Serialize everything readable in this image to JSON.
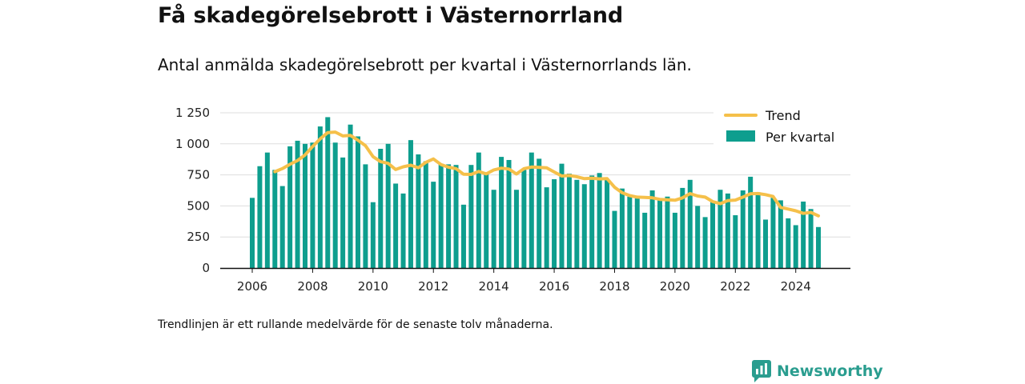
{
  "header": {
    "title": "Få skadegörelsebrott i Västernorrland",
    "subtitle": "Antal anmälda skadegörelsebrott per kvartal i Västernorrlands län."
  },
  "footnote": "Trendlinjen är ett rullande medelvärde för de senaste tolv månaderna.",
  "brand": {
    "name": "Newsworthy",
    "icon": "newsworthy-logo-icon"
  },
  "colors": {
    "bars": "#0e9e8e",
    "trend": "#f5c04a",
    "grid": "#dddddd",
    "axis": "#111111"
  },
  "legend": {
    "trend_label": "Trend",
    "bars_label": "Per kvartal"
  },
  "chart_data": {
    "type": "bar",
    "title": "",
    "xlabel": "",
    "ylabel": "",
    "x_ticks": [
      "2006",
      "2008",
      "2010",
      "2012",
      "2014",
      "2016",
      "2018",
      "2020",
      "2022",
      "2024"
    ],
    "y_ticks": [
      "0",
      "250",
      "500",
      "750",
      "1 000",
      "1 250"
    ],
    "xlim": [
      2006.0,
      2024.75
    ],
    "ylim": [
      0,
      1250
    ],
    "grid": true,
    "legend_position": "top-right",
    "quarters": [
      "2006 Q1",
      "2006 Q2",
      "2006 Q3",
      "2006 Q4",
      "2007 Q1",
      "2007 Q2",
      "2007 Q3",
      "2007 Q4",
      "2008 Q1",
      "2008 Q2",
      "2008 Q3",
      "2008 Q4",
      "2009 Q1",
      "2009 Q2",
      "2009 Q3",
      "2009 Q4",
      "2010 Q1",
      "2010 Q2",
      "2010 Q3",
      "2010 Q4",
      "2011 Q1",
      "2011 Q2",
      "2011 Q3",
      "2011 Q4",
      "2012 Q1",
      "2012 Q2",
      "2012 Q3",
      "2012 Q4",
      "2013 Q1",
      "2013 Q2",
      "2013 Q3",
      "2013 Q4",
      "2014 Q1",
      "2014 Q2",
      "2014 Q3",
      "2014 Q4",
      "2015 Q1",
      "2015 Q2",
      "2015 Q3",
      "2015 Q4",
      "2016 Q1",
      "2016 Q2",
      "2016 Q3",
      "2016 Q4",
      "2017 Q1",
      "2017 Q2",
      "2017 Q3",
      "2017 Q4",
      "2018 Q1",
      "2018 Q2",
      "2018 Q3",
      "2018 Q4",
      "2019 Q1",
      "2019 Q2",
      "2019 Q3",
      "2019 Q4",
      "2020 Q1",
      "2020 Q2",
      "2020 Q3",
      "2020 Q4",
      "2021 Q1",
      "2021 Q2",
      "2021 Q3",
      "2021 Q4",
      "2022 Q1",
      "2022 Q2",
      "2022 Q3",
      "2022 Q4",
      "2023 Q1",
      "2023 Q2",
      "2023 Q3",
      "2023 Q4",
      "2024 Q1",
      "2024 Q2",
      "2024 Q3",
      "2024 Q4"
    ],
    "series": [
      {
        "name": "Per kvartal",
        "type": "bar",
        "values": [
          565,
          820,
          930,
          790,
          660,
          980,
          1025,
          1000,
          1010,
          1140,
          1215,
          1010,
          890,
          1155,
          1060,
          835,
          530,
          960,
          1000,
          680,
          600,
          1030,
          915,
          860,
          695,
          840,
          835,
          830,
          510,
          830,
          930,
          760,
          630,
          895,
          870,
          630,
          790,
          930,
          880,
          650,
          715,
          840,
          760,
          710,
          675,
          745,
          765,
          715,
          460,
          640,
          575,
          560,
          445,
          625,
          545,
          575,
          445,
          645,
          710,
          500,
          410,
          530,
          630,
          600,
          425,
          625,
          735,
          610,
          390,
          565,
          545,
          400,
          345,
          535,
          475,
          330
        ]
      },
      {
        "name": "Trend",
        "type": "line",
        "values": [
          null,
          null,
          null,
          776,
          801,
          835,
          866,
          911,
          979,
          1040,
          1091,
          1095,
          1064,
          1068,
          1029,
          985,
          897,
          856,
          843,
          793,
          815,
          828,
          807,
          851,
          878,
          833,
          812,
          800,
          755,
          754,
          778,
          758,
          790,
          804,
          797,
          757,
          800,
          813,
          810,
          807,
          773,
          741,
          745,
          735,
          720,
          723,
          718,
          720,
          650,
          606,
          583,
          571,
          569,
          565,
          553,
          549,
          546,
          565,
          599,
          580,
          571,
          535,
          518,
          543,
          547,
          571,
          598,
          600,
          591,
          576,
          488,
          475,
          461,
          440,
          448,
          420
        ]
      }
    ]
  }
}
